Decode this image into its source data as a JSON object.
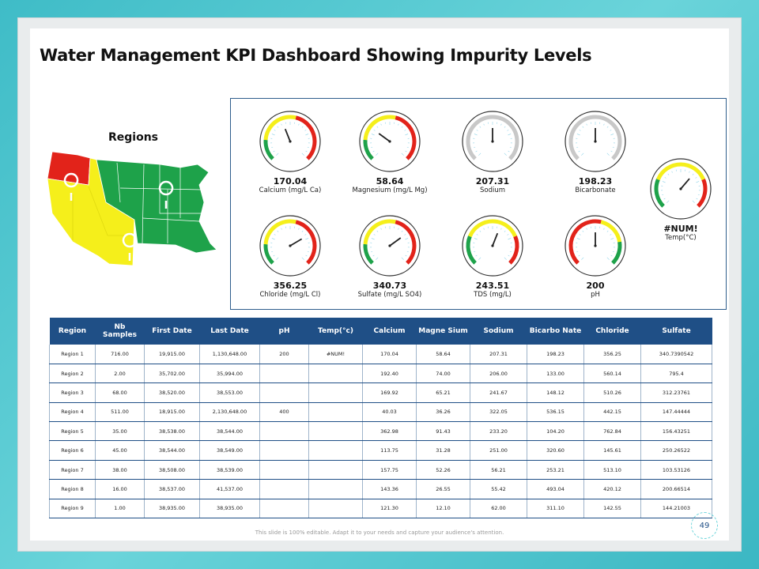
{
  "title": "Water Management KPI Dashboard Showing Impurity Levels",
  "regions_label": "Regions",
  "colors": {
    "header": "#1f4f86",
    "red": "#e2231a",
    "yellow": "#f5ef1b",
    "green": "#1ea24a"
  },
  "gauges": [
    {
      "value": "170.04",
      "label": "Calcium (mg/L Ca)",
      "style": "traffic",
      "needle_fraction": 0.42
    },
    {
      "value": "58.64",
      "label": "Magnesium (mg/L Mg)",
      "style": "traffic",
      "needle_fraction": 0.3
    },
    {
      "value": "207.31",
      "label": "Sodium",
      "style": "grey",
      "needle_fraction": 0.5
    },
    {
      "value": "198.23",
      "label": "Bicarbonate",
      "style": "grey",
      "needle_fraction": 0.5
    },
    {
      "value": "#NUM!",
      "label": "Temp(°C)",
      "style": "traffic2",
      "needle_fraction": 0.65
    },
    {
      "value": "356.25",
      "label": "Chloride (mg/L Cl)",
      "style": "traffic",
      "needle_fraction": 0.72
    },
    {
      "value": "340.73",
      "label": "Sulfate (mg/L SO4)",
      "style": "traffic",
      "needle_fraction": 0.7
    },
    {
      "value": "243.51",
      "label": "TDS (mg/L)",
      "style": "traffic2",
      "needle_fraction": 0.58
    },
    {
      "value": "200",
      "label": "pH",
      "style": "reverse",
      "needle_fraction": 0.5
    }
  ],
  "table": {
    "headers": [
      "Region",
      "Nb Samples",
      "First Date",
      "Last Date",
      "pH",
      "Temp(°c)",
      "Calcium",
      "Magne Sium",
      "Sodium",
      "Bicarbo Nate",
      "Chloride",
      "Sulfate"
    ],
    "rows": [
      [
        "Region 1",
        "716.00",
        "19,915.00",
        "1,130,648.00",
        "200",
        "#NUM!",
        "170.04",
        "58.64",
        "207.31",
        "198.23",
        "356.25",
        "340.7390542"
      ],
      [
        "Region 2",
        "2.00",
        "35,702.00",
        "35,994.00",
        "",
        "",
        "192.40",
        "74.00",
        "206.00",
        "133.00",
        "560.14",
        "795.4"
      ],
      [
        "Region 3",
        "68.00",
        "38,520.00",
        "38,553.00",
        "",
        "",
        "169.92",
        "65.21",
        "241.67",
        "148.12",
        "510.26",
        "312.23761"
      ],
      [
        "Region 4",
        "511.00",
        "18,915.00",
        "2,130,648.00",
        "400",
        "",
        "40.03",
        "36.26",
        "322.05",
        "536.15",
        "442.15",
        "147.44444"
      ],
      [
        "Region 5",
        "35.00",
        "38,538.00",
        "38,544.00",
        "",
        "",
        "362.98",
        "91.43",
        "233.20",
        "104.20",
        "762.84",
        "156.43251"
      ],
      [
        "Region 6",
        "45.00",
        "38,544.00",
        "38,549.00",
        "",
        "",
        "113.75",
        "31.28",
        "251.00",
        "320.60",
        "145.61",
        "250.26522"
      ],
      [
        "Region 7",
        "38.00",
        "38,508.00",
        "38,539.00",
        "",
        "",
        "157.75",
        "52.26",
        "56.21",
        "253.21",
        "513.10",
        "103.53126"
      ],
      [
        "Region 8",
        "16.00",
        "38,537.00",
        "41,537.00",
        "",
        "",
        "143.36",
        "26.55",
        "55.42",
        "493.04",
        "420.12",
        "200.66514"
      ],
      [
        "Region 9",
        "1.00",
        "38,935.00",
        "38,935.00",
        "",
        "",
        "121.30",
        "12.10",
        "62.00",
        "311.10",
        "142.55",
        "144.21003"
      ]
    ]
  },
  "footer": "This slide is 100% editable. Adapt it to your needs and capture your audience's attention.",
  "page_number": "49"
}
